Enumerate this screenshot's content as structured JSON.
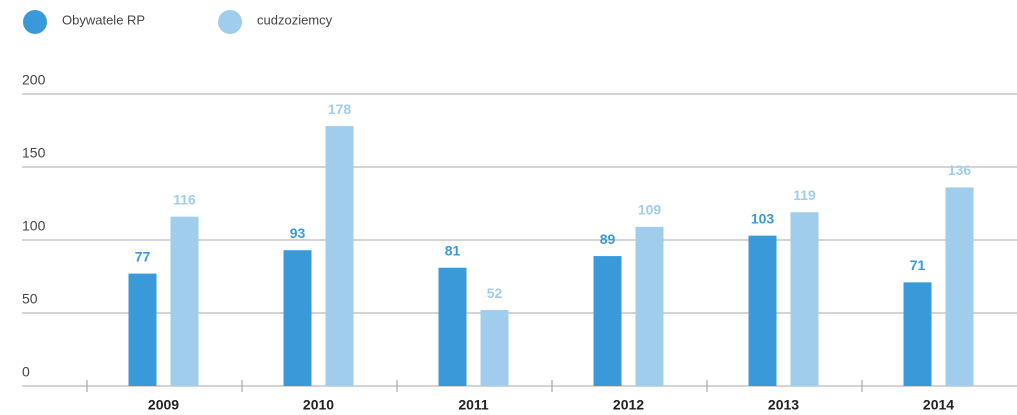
{
  "chart_data": {
    "type": "bar",
    "categories": [
      "2009",
      "2010",
      "2011",
      "2012",
      "2013",
      "2014"
    ],
    "series": [
      {
        "name": "Obywatele RP",
        "color": "#3a9ad9",
        "values": [
          77,
          93,
          81,
          89,
          103,
          71
        ]
      },
      {
        "name": "cudzoziemcy",
        "color": "#9fcdeb",
        "values": [
          116,
          178,
          52,
          109,
          119,
          136
        ]
      }
    ],
    "ylim": [
      0,
      200
    ],
    "yticks": [
      0,
      50,
      100,
      150,
      200
    ],
    "grid": true,
    "legend": "top-left"
  }
}
